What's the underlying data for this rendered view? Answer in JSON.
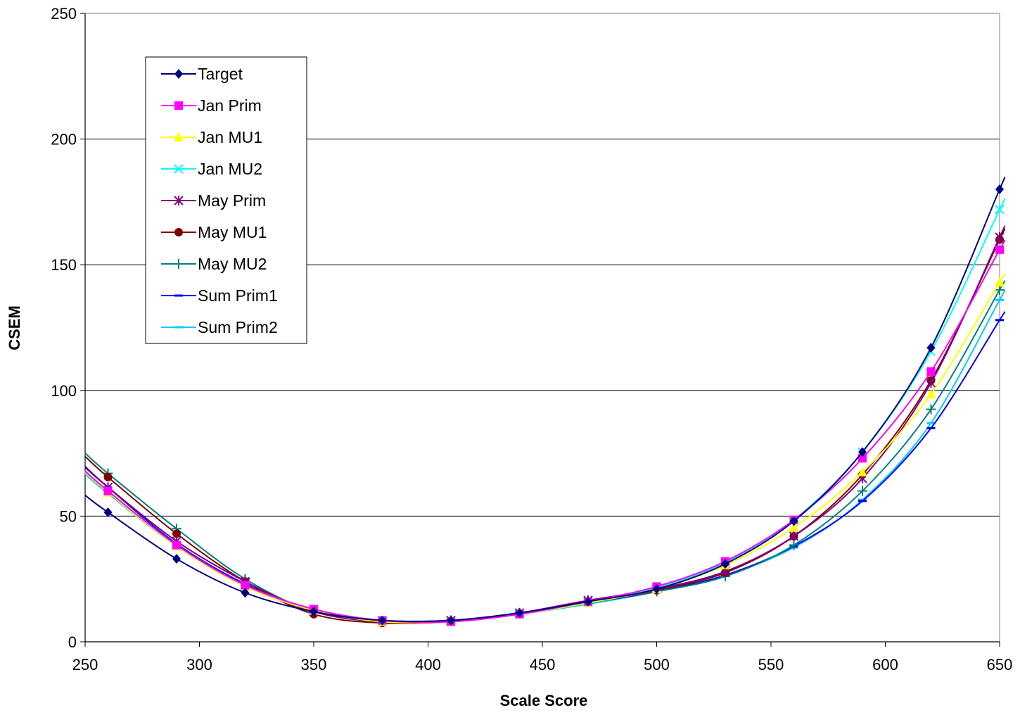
{
  "chart_data": {
    "type": "line",
    "xlabel": "Scale Score",
    "ylabel": "CSEM",
    "xlim": [
      250,
      650
    ],
    "ylim": [
      0,
      250
    ],
    "x_ticks": [
      250,
      300,
      350,
      400,
      450,
      500,
      550,
      600,
      650
    ],
    "y_ticks": [
      0,
      50,
      100,
      150,
      200,
      250
    ],
    "grid": "horizontal",
    "legend_position": "top-left",
    "x": [
      260,
      290,
      320,
      350,
      380,
      410,
      440,
      470,
      500,
      530,
      560,
      590,
      620,
      650
    ],
    "series": [
      {
        "name": "Target",
        "color": "#000080",
        "marker": "diamond",
        "values": [
          51.5,
          33,
          19.5,
          12,
          8.5,
          8.5,
          11.5,
          16,
          21,
          31,
          48,
          75.5,
          117,
          180
        ]
      },
      {
        "name": "Jan Prim",
        "color": "#FF00FF",
        "marker": "square",
        "values": [
          60,
          38.5,
          22.5,
          13,
          8.5,
          8,
          11,
          16,
          22,
          32,
          48.5,
          73,
          107.5,
          156
        ]
      },
      {
        "name": "Jan MU1",
        "color": "#FFFF00",
        "marker": "triangle",
        "values": [
          59.5,
          38,
          22,
          12.5,
          8,
          8,
          11,
          15.5,
          21,
          30.5,
          45.5,
          67.5,
          98.5,
          143
        ]
      },
      {
        "name": "Jan MU2",
        "color": "#00FFFF",
        "marker": "x",
        "values": [
          60,
          38,
          22.5,
          13,
          8.5,
          8,
          11,
          15.5,
          21.5,
          31.5,
          48.5,
          75.5,
          115.5,
          172
        ]
      },
      {
        "name": "May Prim",
        "color": "#800080",
        "marker": "asterisk",
        "values": [
          61.5,
          40,
          24,
          12,
          8,
          8.5,
          11.5,
          16.5,
          21,
          28,
          42,
          65,
          103,
          161
        ]
      },
      {
        "name": "May MU1",
        "color": "#800000",
        "marker": "circle",
        "values": [
          65.5,
          43,
          24,
          11,
          7.5,
          8,
          11,
          15.5,
          20.5,
          27.5,
          42,
          66.5,
          104,
          160
        ]
      },
      {
        "name": "May MU2",
        "color": "#008080",
        "marker": "plus",
        "values": [
          67,
          45,
          25,
          12,
          8,
          8.5,
          11.5,
          16,
          20,
          26,
          38.5,
          60,
          92.5,
          140
        ]
      },
      {
        "name": "Sum Prim1",
        "color": "#0000FF",
        "marker": "dash",
        "values": [
          61.5,
          39,
          23,
          12,
          8.5,
          8.5,
          11,
          15.5,
          20,
          26.5,
          38,
          56,
          85,
          128
        ]
      },
      {
        "name": "Sum Prim2",
        "color": "#00CCFF",
        "marker": "dash",
        "values": [
          59,
          38,
          22.5,
          12.5,
          8.5,
          8,
          11,
          15,
          20,
          26.5,
          37.5,
          56.5,
          87,
          136
        ]
      }
    ]
  }
}
